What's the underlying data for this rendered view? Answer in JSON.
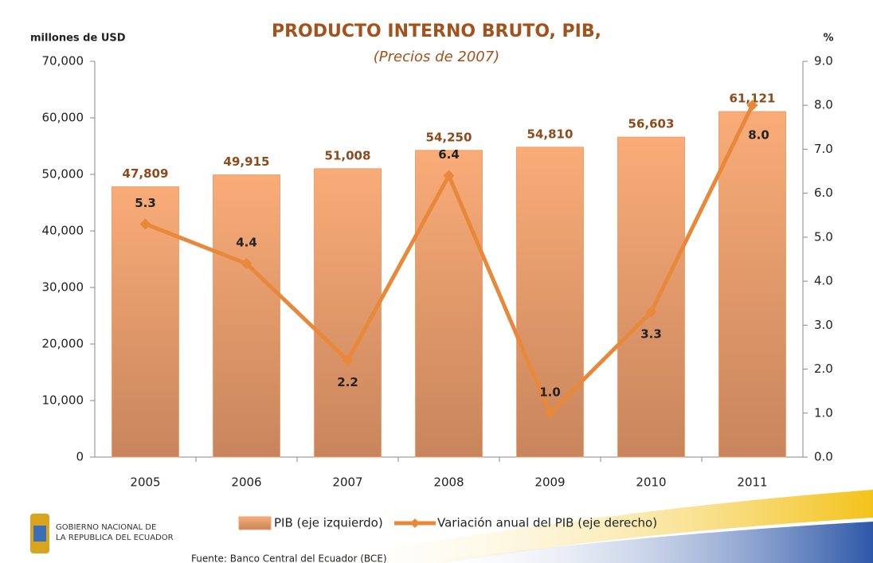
{
  "chart_data": {
    "type": "bar_line",
    "title": "PRODUCTO INTERNO BRUTO, PIB,",
    "subtitle": "(Precios de 2007)",
    "y_label": "millones de USD",
    "y2_label": "%",
    "categories": [
      "2005",
      "2006",
      "2007",
      "2008",
      "2009",
      "2010",
      "2011"
    ],
    "series": [
      {
        "name": "PIB (eje izquierdo)",
        "type": "bar",
        "color": "#f0a06a",
        "values": [
          47809,
          49915,
          51008,
          54250,
          54810,
          56603,
          61121
        ],
        "value_labels": [
          "47,809",
          "49,915",
          "51,008",
          "54,250",
          "54,810",
          "56,603",
          "61,121"
        ]
      },
      {
        "name": "Variación anual del PIB (eje derecho)",
        "type": "line",
        "axis": "y2",
        "color": "#e8883a",
        "values": [
          5.3,
          4.4,
          2.2,
          6.4,
          1.0,
          3.3,
          8.0
        ],
        "value_labels": [
          "5.3",
          "4.4",
          "2.2",
          "6.4",
          "1.0",
          "3.3",
          "8.0"
        ]
      }
    ],
    "ylim": [
      0,
      70000
    ],
    "yticks": [
      0,
      {
        "value": 10000,
        "label": "10,000"
      },
      {
        "value": 20000,
        "label": "20,000"
      },
      {
        "value": 30000,
        "label": "30,000"
      },
      {
        "value": 40000,
        "label": "40,000"
      },
      {
        "value": 50000,
        "label": "50,000"
      },
      {
        "value": 60000,
        "label": "60,000"
      },
      {
        "value": 70000,
        "label": "70,000"
      }
    ],
    "y2lim": [
      0,
      9
    ],
    "y2ticks": [
      {
        "value": 0,
        "label": "0.0"
      },
      {
        "value": 1,
        "label": "1.0"
      },
      {
        "value": 2,
        "label": "2.0"
      },
      {
        "value": 3,
        "label": "3.0"
      },
      {
        "value": 4,
        "label": "4.0"
      },
      {
        "value": 5,
        "label": "5.0"
      },
      {
        "value": 6,
        "label": "6.0"
      },
      {
        "value": 7,
        "label": "7.0"
      },
      {
        "value": 8,
        "label": "8.0"
      },
      {
        "value": 9,
        "label": "9.0"
      }
    ],
    "legend": "bottom",
    "grid": false
  },
  "footer": {
    "logo_line1": "GOBIERNO NACIONAL DE",
    "logo_line2": "LA REPUBLICA DEL ECUADOR",
    "source": "Fuente: Banco Central del Ecuador (BCE)"
  }
}
